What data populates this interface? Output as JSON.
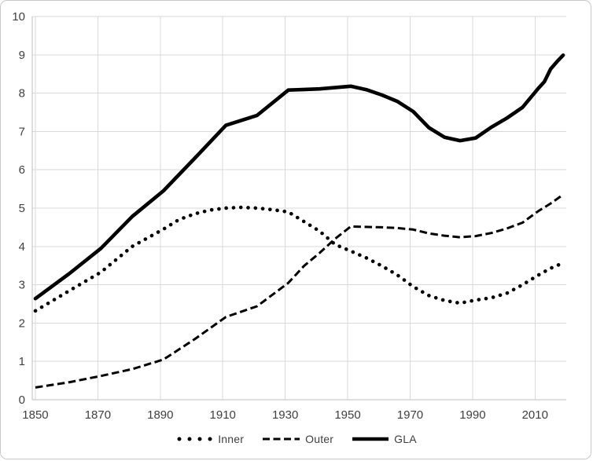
{
  "chart_data": {
    "type": "line",
    "title": "",
    "xlabel": "",
    "ylabel": "",
    "x_range": [
      1849,
      2020
    ],
    "y_range": [
      0,
      10
    ],
    "x_ticks": [
      "1850",
      "1870",
      "1890",
      "1910",
      "1930",
      "1950",
      "1970",
      "1990",
      "2010"
    ],
    "x_tick_years": [
      1850,
      1870,
      1890,
      1910,
      1930,
      1950,
      1970,
      1990,
      2010
    ],
    "y_ticks": [
      "0",
      "1",
      "2",
      "3",
      "4",
      "5",
      "6",
      "7",
      "8",
      "9",
      "10"
    ],
    "y_tick_values": [
      0,
      1,
      2,
      3,
      4,
      5,
      6,
      7,
      8,
      9,
      10
    ],
    "grid": true,
    "legend_position": "bottom",
    "colors": {
      "series": "#000000",
      "grid": "#d9d9d9",
      "axis": "#bfbfbf",
      "label": "#404040"
    },
    "series": [
      {
        "name": "Inner",
        "style": "dotted",
        "points": [
          [
            1850,
            2.32
          ],
          [
            1861,
            2.85
          ],
          [
            1871,
            3.33
          ],
          [
            1881,
            4.0
          ],
          [
            1891,
            4.45
          ],
          [
            1896,
            4.7
          ],
          [
            1901,
            4.85
          ],
          [
            1906,
            4.95
          ],
          [
            1911,
            5.0
          ],
          [
            1916,
            5.02
          ],
          [
            1921,
            5.0
          ],
          [
            1926,
            4.96
          ],
          [
            1931,
            4.9
          ],
          [
            1936,
            4.65
          ],
          [
            1941,
            4.4
          ],
          [
            1946,
            4.05
          ],
          [
            1951,
            3.88
          ],
          [
            1956,
            3.7
          ],
          [
            1961,
            3.49
          ],
          [
            1966,
            3.25
          ],
          [
            1971,
            2.95
          ],
          [
            1976,
            2.72
          ],
          [
            1981,
            2.59
          ],
          [
            1986,
            2.52
          ],
          [
            1991,
            2.6
          ],
          [
            1996,
            2.66
          ],
          [
            2001,
            2.78
          ],
          [
            2006,
            3.0
          ],
          [
            2011,
            3.25
          ],
          [
            2015,
            3.43
          ],
          [
            2019,
            3.57
          ]
        ]
      },
      {
        "name": "Outer",
        "style": "dashed",
        "points": [
          [
            1850,
            0.32
          ],
          [
            1861,
            0.46
          ],
          [
            1871,
            0.62
          ],
          [
            1881,
            0.8
          ],
          [
            1891,
            1.05
          ],
          [
            1901,
            1.58
          ],
          [
            1911,
            2.16
          ],
          [
            1921,
            2.44
          ],
          [
            1931,
            3.05
          ],
          [
            1936,
            3.49
          ],
          [
            1941,
            3.83
          ],
          [
            1946,
            4.2
          ],
          [
            1951,
            4.52
          ],
          [
            1961,
            4.5
          ],
          [
            1966,
            4.48
          ],
          [
            1971,
            4.44
          ],
          [
            1976,
            4.34
          ],
          [
            1981,
            4.28
          ],
          [
            1986,
            4.24
          ],
          [
            1991,
            4.27
          ],
          [
            1996,
            4.35
          ],
          [
            2001,
            4.47
          ],
          [
            2006,
            4.62
          ],
          [
            2011,
            4.92
          ],
          [
            2015,
            5.12
          ],
          [
            2019,
            5.35
          ]
        ]
      },
      {
        "name": "GLA",
        "style": "solid",
        "points": [
          [
            1850,
            2.64
          ],
          [
            1861,
            3.3
          ],
          [
            1871,
            3.95
          ],
          [
            1881,
            4.78
          ],
          [
            1891,
            5.45
          ],
          [
            1901,
            6.3
          ],
          [
            1911,
            7.16
          ],
          [
            1921,
            7.42
          ],
          [
            1931,
            8.08
          ],
          [
            1941,
            8.11
          ],
          [
            1951,
            8.18
          ],
          [
            1956,
            8.09
          ],
          [
            1961,
            7.95
          ],
          [
            1966,
            7.78
          ],
          [
            1971,
            7.52
          ],
          [
            1976,
            7.1
          ],
          [
            1981,
            6.85
          ],
          [
            1986,
            6.76
          ],
          [
            1991,
            6.83
          ],
          [
            1996,
            7.11
          ],
          [
            2001,
            7.35
          ],
          [
            2006,
            7.63
          ],
          [
            2011,
            8.12
          ],
          [
            2013,
            8.3
          ],
          [
            2015,
            8.63
          ],
          [
            2017,
            8.82
          ],
          [
            2019,
            8.99
          ]
        ]
      }
    ]
  },
  "legend": {
    "inner_label": "Inner",
    "outer_label": "Outer",
    "gla_label": "GLA"
  }
}
